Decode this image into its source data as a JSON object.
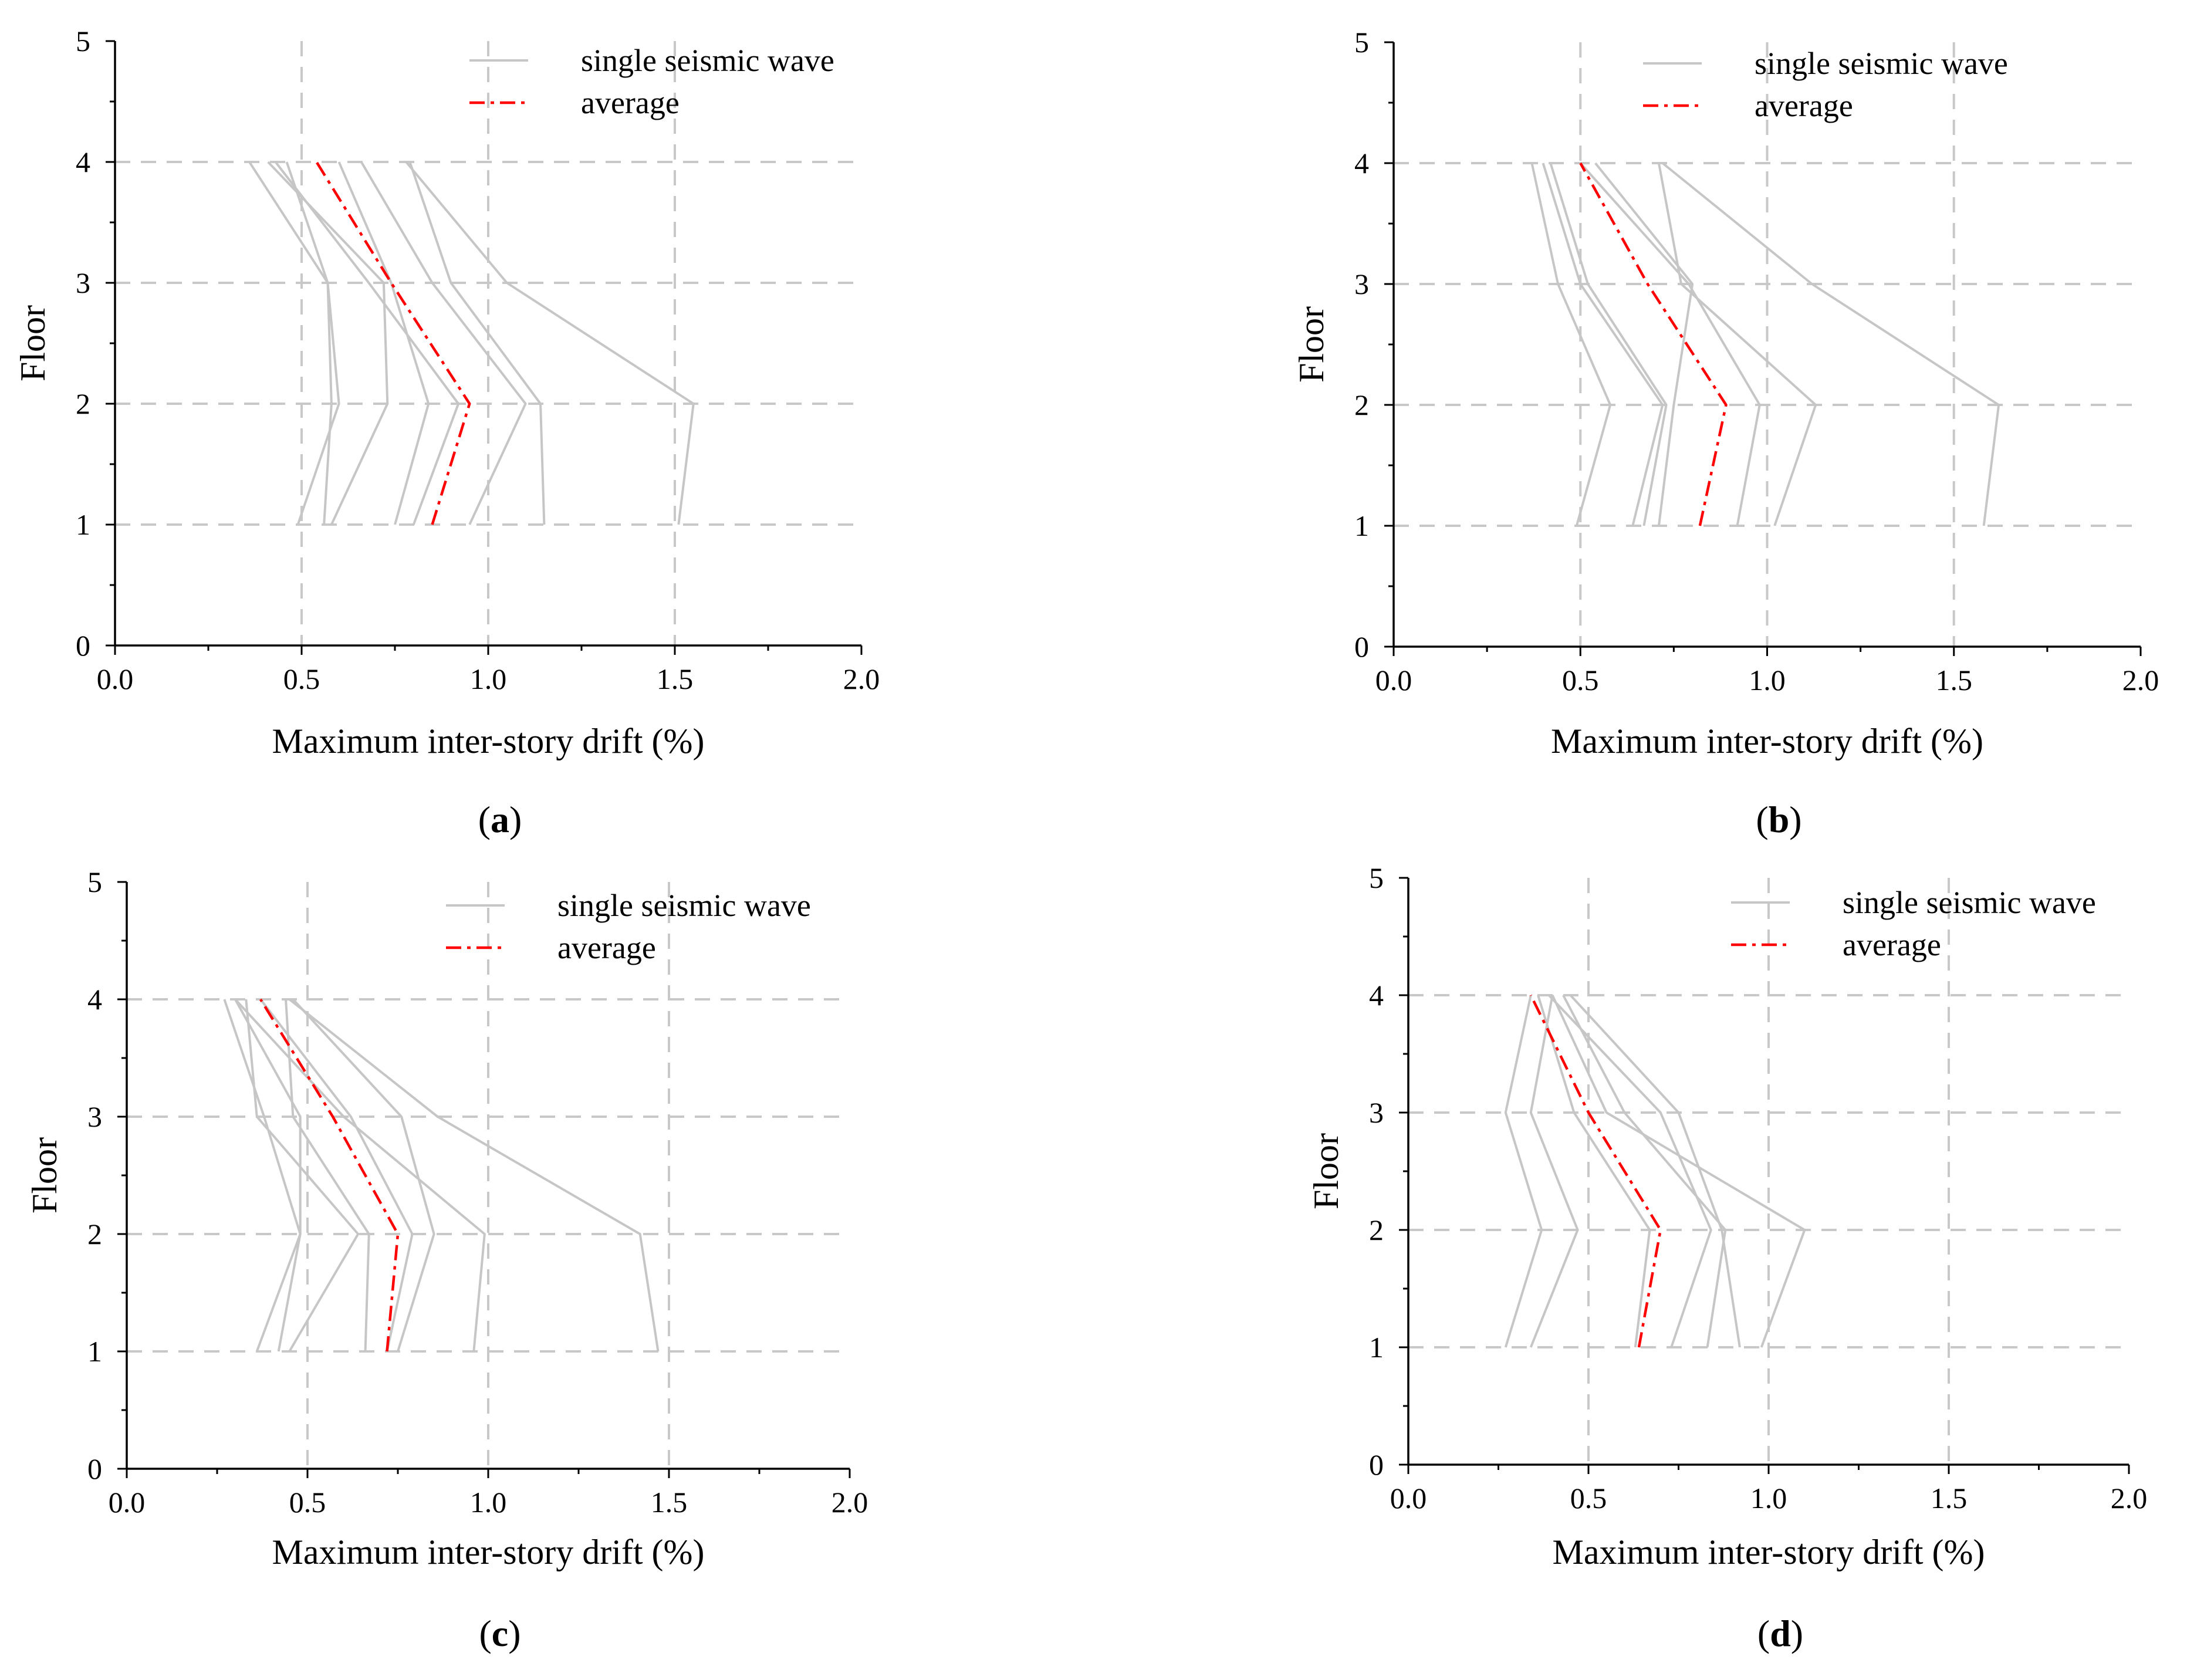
{
  "chart_data": [
    {
      "panel": "a",
      "type": "line",
      "caption_letter": "a",
      "xlabel": "Maximum inter-story drift (%)",
      "ylabel": "Floor",
      "xlim": [
        0,
        2.0
      ],
      "ylim": [
        0,
        5
      ],
      "xticks": [
        "0.0",
        "0.5",
        "1.0",
        "1.5",
        "2.0"
      ],
      "yticks": [
        "0",
        "1",
        "2",
        "3",
        "4",
        "5"
      ],
      "floors": [
        1,
        2,
        3,
        4
      ],
      "legend": {
        "single": "single seismic wave",
        "average": "average"
      },
      "grid": true,
      "series": [
        {
          "name": "single seismic wave",
          "values": [
            0.49,
            0.6,
            0.57,
            0.36
          ]
        },
        {
          "name": "single seismic wave",
          "values": [
            0.56,
            0.58,
            0.57,
            0.46
          ]
        },
        {
          "name": "single seismic wave",
          "values": [
            0.58,
            0.73,
            0.72,
            0.41
          ]
        },
        {
          "name": "single seismic wave",
          "values": [
            0.75,
            0.84,
            0.74,
            0.6
          ]
        },
        {
          "name": "single seismic wave",
          "values": [
            0.8,
            0.92,
            0.68,
            0.43
          ]
        },
        {
          "name": "single seismic wave",
          "values": [
            0.95,
            1.1,
            0.85,
            0.66
          ]
        },
        {
          "name": "single seismic wave",
          "values": [
            1.15,
            1.14,
            0.9,
            0.79
          ]
        },
        {
          "name": "single seismic wave",
          "values": [
            1.51,
            1.55,
            1.05,
            0.78
          ]
        },
        {
          "name": "average",
          "values": [
            0.85,
            0.95,
            0.74,
            0.54
          ]
        }
      ]
    },
    {
      "panel": "b",
      "type": "line",
      "caption_letter": "b",
      "xlabel": "Maximum inter-story drift (%)",
      "ylabel": "Floor",
      "xlim": [
        0,
        2.0
      ],
      "ylim": [
        0,
        5
      ],
      "xticks": [
        "0.0",
        "0.5",
        "1.0",
        "1.5",
        "2.0"
      ],
      "yticks": [
        "0",
        "1",
        "2",
        "3",
        "4",
        "5"
      ],
      "floors": [
        1,
        2,
        3,
        4
      ],
      "legend": {
        "single": "single seismic wave",
        "average": "average"
      },
      "grid": true,
      "series": [
        {
          "name": "single seismic wave",
          "values": [
            0.49,
            0.58,
            0.44,
            0.37
          ]
        },
        {
          "name": "single seismic wave",
          "values": [
            0.64,
            0.72,
            0.5,
            0.4
          ]
        },
        {
          "name": "single seismic wave",
          "values": [
            0.67,
            0.73,
            0.52,
            0.42
          ]
        },
        {
          "name": "single seismic wave",
          "values": [
            0.71,
            0.75,
            0.8,
            0.54
          ]
        },
        {
          "name": "single seismic wave",
          "values": [
            0.92,
            0.98,
            0.79,
            0.5
          ]
        },
        {
          "name": "single seismic wave",
          "values": [
            1.02,
            1.13,
            0.77,
            0.71
          ]
        },
        {
          "name": "single seismic wave",
          "values": [
            1.58,
            1.62,
            1.12,
            0.72
          ]
        },
        {
          "name": "average",
          "values": [
            0.82,
            0.89,
            0.68,
            0.5
          ]
        }
      ]
    },
    {
      "panel": "c",
      "type": "line",
      "caption_letter": "c",
      "xlabel": "Maximum inter-story drift (%)",
      "ylabel": "Floor",
      "xlim": [
        0,
        2.0
      ],
      "ylim": [
        0,
        5
      ],
      "xticks": [
        "0.0",
        "0.5",
        "1.0",
        "1.5",
        "2.0"
      ],
      "yticks": [
        "0",
        "1",
        "2",
        "3",
        "4",
        "5"
      ],
      "floors": [
        1,
        2,
        3,
        4
      ],
      "legend": {
        "single": "single seismic wave",
        "average": "average"
      },
      "grid": true,
      "series": [
        {
          "name": "single seismic wave",
          "values": [
            0.36,
            0.48,
            0.38,
            0.27
          ]
        },
        {
          "name": "single seismic wave",
          "values": [
            0.42,
            0.48,
            0.48,
            0.3
          ]
        },
        {
          "name": "single seismic wave",
          "values": [
            0.45,
            0.64,
            0.36,
            0.33
          ]
        },
        {
          "name": "single seismic wave",
          "values": [
            0.66,
            0.67,
            0.46,
            0.44
          ]
        },
        {
          "name": "single seismic wave",
          "values": [
            0.72,
            0.79,
            0.62,
            0.37
          ]
        },
        {
          "name": "single seismic wave",
          "values": [
            0.75,
            0.85,
            0.76,
            0.46
          ]
        },
        {
          "name": "single seismic wave",
          "values": [
            0.96,
            0.99,
            0.6,
            0.3
          ]
        },
        {
          "name": "single seismic wave",
          "values": [
            1.47,
            1.42,
            0.86,
            0.45
          ]
        },
        {
          "name": "average",
          "values": [
            0.72,
            0.75,
            0.57,
            0.37
          ]
        }
      ]
    },
    {
      "panel": "d",
      "type": "line",
      "caption_letter": "d",
      "xlabel": "Maximum inter-story drift (%)",
      "ylabel": "Floor",
      "xlim": [
        0,
        2.0
      ],
      "ylim": [
        0,
        5
      ],
      "xticks": [
        "0.0",
        "0.5",
        "1.0",
        "1.5",
        "2.0"
      ],
      "yticks": [
        "0",
        "1",
        "2",
        "3",
        "4",
        "5"
      ],
      "floors": [
        1,
        2,
        3,
        4
      ],
      "legend": {
        "single": "single seismic wave",
        "average": "average"
      },
      "grid": true,
      "series": [
        {
          "name": "single seismic wave",
          "values": [
            0.27,
            0.37,
            0.27,
            0.34
          ]
        },
        {
          "name": "single seismic wave",
          "values": [
            0.34,
            0.47,
            0.34,
            0.4
          ]
        },
        {
          "name": "single seismic wave",
          "values": [
            0.63,
            0.67,
            0.46,
            0.36
          ]
        },
        {
          "name": "single seismic wave",
          "values": [
            0.73,
            0.84,
            0.7,
            0.39
          ]
        },
        {
          "name": "single seismic wave",
          "values": [
            0.83,
            0.88,
            0.6,
            0.43
          ]
        },
        {
          "name": "single seismic wave",
          "values": [
            0.92,
            0.87,
            0.75,
            0.45
          ]
        },
        {
          "name": "single seismic wave",
          "values": [
            0.98,
            1.1,
            0.55,
            0.4
          ]
        },
        {
          "name": "average",
          "values": [
            0.64,
            0.7,
            0.5,
            0.34
          ]
        }
      ]
    }
  ],
  "colors": {
    "single": "#c6c6c6",
    "average": "#ff0000",
    "grid": "#c8c8c8",
    "axis": "#000000"
  }
}
